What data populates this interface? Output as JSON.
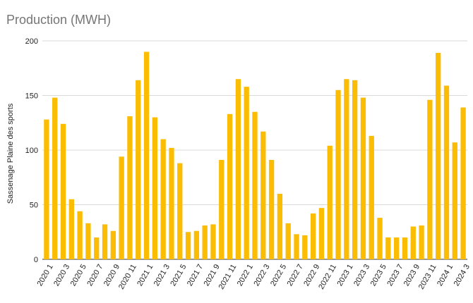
{
  "chart_data": {
    "type": "bar",
    "title": "Production (MWH)",
    "xlabel": "",
    "ylabel": "Sassenage Plaine des sports",
    "ylim": [
      0,
      200
    ],
    "yticks": [
      0,
      50,
      100,
      150,
      200
    ],
    "grid": true,
    "legend": "none",
    "bar_color": "#FBBC04",
    "categories": [
      "2020 1",
      "2020 2",
      "2020 3",
      "2020 4",
      "2020 5",
      "2020 6",
      "2020 7",
      "2020 8",
      "2020 9",
      "2020 10",
      "2020 11",
      "2020 12",
      "2021 1",
      "2021 2",
      "2021 3",
      "2021 4",
      "2021 5",
      "2021 6",
      "2021 7",
      "2021 8",
      "2021 9",
      "2021 10",
      "2021 11",
      "2021 12",
      "2022 1",
      "2022 2",
      "2022 3",
      "2022 4",
      "2022 5",
      "2022 6",
      "2022 7",
      "2022 8",
      "2022 9",
      "2022 10",
      "2022 11",
      "2022 12",
      "2023 1",
      "2023 2",
      "2023 3",
      "2023 4",
      "2023 5",
      "2023 6",
      "2023 7",
      "2023 8",
      "2023 9",
      "2023 10",
      "2023 11",
      "2023 12",
      "2024 1",
      "2024 2",
      "2024 3"
    ],
    "values": [
      128,
      148,
      124,
      55,
      44,
      33,
      20,
      32,
      26,
      94,
      131,
      164,
      190,
      130,
      110,
      102,
      88,
      25,
      26,
      31,
      32,
      91,
      133,
      165,
      158,
      135,
      117,
      91,
      60,
      33,
      23,
      22,
      42,
      47,
      104,
      155,
      165,
      164,
      148,
      113,
      38,
      20,
      20,
      20,
      30,
      31,
      146,
      189,
      159,
      107,
      139
    ],
    "visible_tick_labels": [
      "2020 1",
      "2020 3",
      "2020 5",
      "2020 7",
      "2020 9",
      "2020 11",
      "2021 1",
      "2021 3",
      "2021 5",
      "2021 7",
      "2021 9",
      "2021 11",
      "2022 1",
      "2022 3",
      "2022 5",
      "2022 7",
      "2022 9",
      "2022 11",
      "2023 1",
      "2023 3",
      "2023 5",
      "2023 7",
      "2023 9",
      "2023 11",
      "2024 1",
      "2024 3"
    ]
  }
}
